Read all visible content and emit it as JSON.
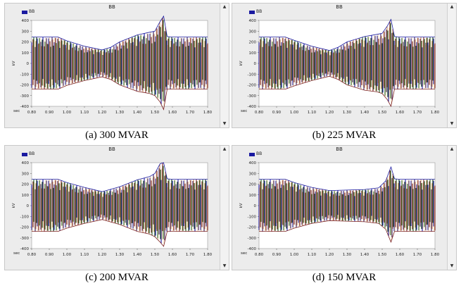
{
  "chart_data": [
    {
      "type": "line",
      "panel_title": "BB",
      "legend": "BB",
      "caption": "(a) 300 MVAR",
      "ylabel": "kV",
      "xlabel": "sec",
      "xlim": [
        0.8,
        1.8
      ],
      "ylim": [
        -400,
        400
      ],
      "xticks": [
        "0.80",
        "0.90",
        "1.00",
        "1.10",
        "1.20",
        "1.30",
        "1.40",
        "1.50",
        "1.60",
        "1.70",
        "1.80"
      ],
      "yticks": [
        "400",
        "300",
        "200",
        "100",
        "0",
        "-100",
        "-200",
        "-300",
        "-400"
      ],
      "series": [
        {
          "color": "#1a1aa0",
          "values": [
            [
              0.8,
              245
            ],
            [
              0.95,
              245
            ],
            [
              1.0,
              210
            ],
            [
              1.1,
              160
            ],
            [
              1.2,
              125
            ],
            [
              1.25,
              150
            ],
            [
              1.3,
              200
            ],
            [
              1.4,
              265
            ],
            [
              1.47,
              290
            ],
            [
              1.5,
              300
            ],
            [
              1.53,
              390
            ],
            [
              1.55,
              440
            ],
            [
              1.57,
              250
            ],
            [
              1.6,
              245
            ],
            [
              1.8,
              245
            ]
          ]
        },
        {
          "color": "#7a1f1f",
          "values": [
            [
              0.8,
              -240
            ],
            [
              0.95,
              -240
            ],
            [
              1.0,
              -205
            ],
            [
              1.1,
              -160
            ],
            [
              1.2,
              -125
            ],
            [
              1.25,
              -150
            ],
            [
              1.3,
              -200
            ],
            [
              1.4,
              -260
            ],
            [
              1.47,
              -280
            ],
            [
              1.5,
              -300
            ],
            [
              1.53,
              -360
            ],
            [
              1.55,
              -430
            ],
            [
              1.57,
              -240
            ],
            [
              1.6,
              -240
            ],
            [
              1.8,
              -240
            ]
          ]
        }
      ]
    },
    {
      "type": "line",
      "panel_title": "BB",
      "legend": "BB",
      "caption": "(b) 225 MVAR",
      "ylabel": "kV",
      "xlabel": "sec",
      "xlim": [
        0.8,
        1.8
      ],
      "ylim": [
        -400,
        400
      ],
      "xticks": [
        "0.80",
        "0.90",
        "1.00",
        "1.10",
        "1.20",
        "1.30",
        "1.40",
        "1.50",
        "1.60",
        "1.70",
        "1.80"
      ],
      "yticks": [
        "400",
        "300",
        "200",
        "100",
        "0",
        "-100",
        "-200",
        "-300",
        "-400"
      ],
      "series": [
        {
          "color": "#1a1aa0",
          "values": [
            [
              0.8,
              245
            ],
            [
              0.95,
              245
            ],
            [
              1.0,
              215
            ],
            [
              1.1,
              160
            ],
            [
              1.2,
              120
            ],
            [
              1.25,
              150
            ],
            [
              1.3,
              200
            ],
            [
              1.4,
              250
            ],
            [
              1.47,
              270
            ],
            [
              1.5,
              280
            ],
            [
              1.53,
              350
            ],
            [
              1.55,
              410
            ],
            [
              1.57,
              250
            ],
            [
              1.6,
              245
            ],
            [
              1.8,
              245
            ]
          ]
        },
        {
          "color": "#7a1f1f",
          "values": [
            [
              0.8,
              -240
            ],
            [
              0.95,
              -240
            ],
            [
              1.0,
              -210
            ],
            [
              1.1,
              -160
            ],
            [
              1.2,
              -120
            ],
            [
              1.25,
              -150
            ],
            [
              1.3,
              -200
            ],
            [
              1.4,
              -250
            ],
            [
              1.47,
              -265
            ],
            [
              1.5,
              -280
            ],
            [
              1.53,
              -340
            ],
            [
              1.55,
              -400
            ],
            [
              1.57,
              -240
            ],
            [
              1.6,
              -240
            ],
            [
              1.8,
              -240
            ]
          ]
        }
      ]
    },
    {
      "type": "line",
      "panel_title": "BB",
      "legend": "BB",
      "caption": "(c) 200 MVAR",
      "ylabel": "kV",
      "xlabel": "sec",
      "xlim": [
        0.8,
        1.8
      ],
      "ylim": [
        -400,
        400
      ],
      "xticks": [
        "0.80",
        "0.90",
        "1.00",
        "1.10",
        "1.20",
        "1.30",
        "1.40",
        "1.50",
        "1.60",
        "1.70",
        "1.80"
      ],
      "yticks": [
        "400",
        "300",
        "200",
        "100",
        "0",
        "-100",
        "-200",
        "-300",
        "-400"
      ],
      "series": [
        {
          "color": "#1a1aa0",
          "values": [
            [
              0.8,
              245
            ],
            [
              0.95,
              245
            ],
            [
              1.0,
              215
            ],
            [
              1.1,
              170
            ],
            [
              1.2,
              130
            ],
            [
              1.3,
              175
            ],
            [
              1.4,
              240
            ],
            [
              1.47,
              270
            ],
            [
              1.5,
              300
            ],
            [
              1.53,
              390
            ],
            [
              1.55,
              400
            ],
            [
              1.57,
              250
            ],
            [
              1.6,
              245
            ],
            [
              1.8,
              245
            ]
          ]
        },
        {
          "color": "#7a1f1f",
          "values": [
            [
              0.8,
              -240
            ],
            [
              0.95,
              -240
            ],
            [
              1.0,
              -210
            ],
            [
              1.1,
              -165
            ],
            [
              1.2,
              -130
            ],
            [
              1.3,
              -175
            ],
            [
              1.4,
              -240
            ],
            [
              1.47,
              -265
            ],
            [
              1.5,
              -290
            ],
            [
              1.53,
              -340
            ],
            [
              1.55,
              -380
            ],
            [
              1.57,
              -240
            ],
            [
              1.6,
              -240
            ],
            [
              1.8,
              -240
            ]
          ]
        }
      ]
    },
    {
      "type": "line",
      "panel_title": "BB",
      "legend": "BB",
      "caption": "(d) 150 MVAR",
      "ylabel": "kV",
      "xlabel": "sec",
      "xlim": [
        0.8,
        1.8
      ],
      "ylim": [
        -400,
        400
      ],
      "xticks": [
        "0.80",
        "0.90",
        "1.00",
        "1.10",
        "1.20",
        "1.30",
        "1.40",
        "1.50",
        "1.60",
        "1.70",
        "1.80"
      ],
      "yticks": [
        "400",
        "300",
        "200",
        "100",
        "0",
        "-100",
        "-200",
        "-300",
        "-400"
      ],
      "series": [
        {
          "color": "#1a1aa0",
          "values": [
            [
              0.8,
              245
            ],
            [
              0.95,
              245
            ],
            [
              1.0,
              215
            ],
            [
              1.1,
              170
            ],
            [
              1.2,
              140
            ],
            [
              1.3,
              145
            ],
            [
              1.4,
              150
            ],
            [
              1.48,
              165
            ],
            [
              1.52,
              230
            ],
            [
              1.55,
              360
            ],
            [
              1.57,
              250
            ],
            [
              1.6,
              245
            ],
            [
              1.8,
              245
            ]
          ]
        },
        {
          "color": "#7a1f1f",
          "values": [
            [
              0.8,
              -240
            ],
            [
              0.95,
              -240
            ],
            [
              1.0,
              -210
            ],
            [
              1.1,
              -165
            ],
            [
              1.2,
              -140
            ],
            [
              1.3,
              -145
            ],
            [
              1.4,
              -150
            ],
            [
              1.48,
              -165
            ],
            [
              1.52,
              -220
            ],
            [
              1.55,
              -340
            ],
            [
              1.57,
              -240
            ],
            [
              1.6,
              -240
            ],
            [
              1.8,
              -240
            ]
          ]
        }
      ]
    }
  ]
}
